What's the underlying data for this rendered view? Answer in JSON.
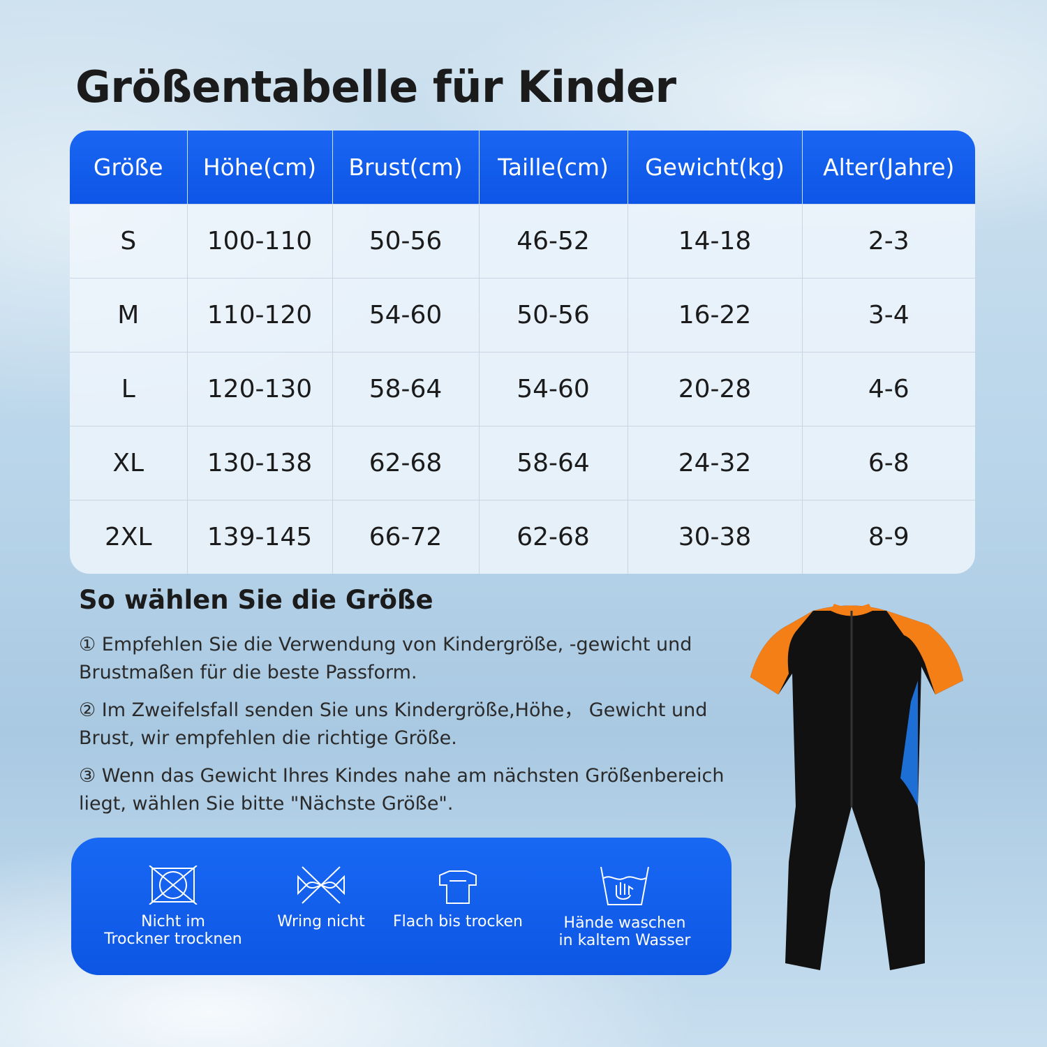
{
  "title": "Größentabelle für Kinder",
  "table": {
    "headers": [
      "Größe",
      "Höhe(cm)",
      "Brust(cm)",
      "Taille(cm)",
      "Gewicht(kg)",
      "Alter(Jahre)"
    ],
    "rows": [
      [
        "S",
        "100-110",
        "50-56",
        "46-52",
        "14-18",
        "2-3"
      ],
      [
        "M",
        "110-120",
        "54-60",
        "50-56",
        "16-22",
        "3-4"
      ],
      [
        "L",
        "120-130",
        "58-64",
        "54-60",
        "20-28",
        "4-6"
      ],
      [
        "XL",
        "130-138",
        "62-68",
        "58-64",
        "24-32",
        "6-8"
      ],
      [
        "2XL",
        "139-145",
        "66-72",
        "62-68",
        "30-38",
        "8-9"
      ]
    ]
  },
  "guide": {
    "heading": "So wählen Sie die Größe",
    "steps": [
      "① Empfehlen Sie die Verwendung von Kindergröße, -gewicht und Brustmaßen für die beste Passform.",
      "② Im Zweifelsfall senden Sie uns Kindergröße,Höhe， Gewicht und Brust, wir empfehlen die richtige Größe.",
      "③ Wenn das Gewicht Ihres Kindes nahe am nächsten Größenbereich liegt, wählen Sie bitte \"Nächste Größe\"."
    ]
  },
  "care": [
    [
      "Nicht im",
      "Trockner trocknen"
    ],
    [
      "Wring nicht"
    ],
    [
      "Flach bis trocken"
    ],
    [
      "Hände waschen",
      "in kaltem Wasser"
    ]
  ]
}
